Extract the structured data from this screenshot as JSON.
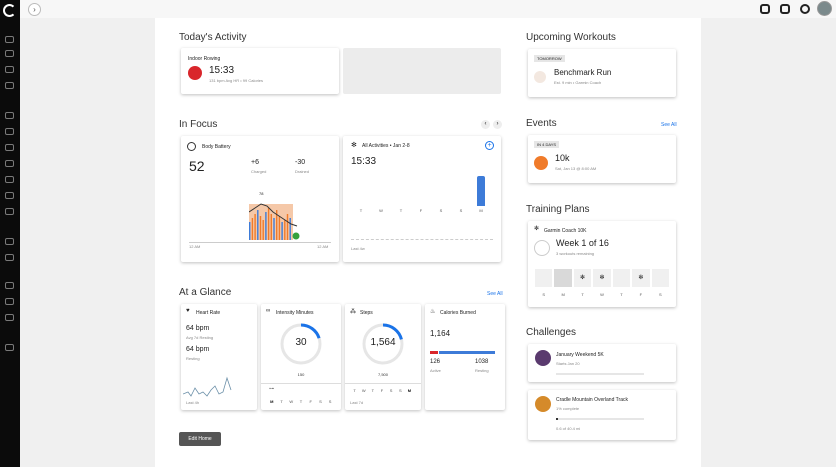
{
  "topbar": {
    "expand_icon": "›"
  },
  "sections": {
    "todays_activity": "Today's Activity",
    "in_focus": "In Focus",
    "at_a_glance": "At a Glance",
    "at_a_glance_link": "See All",
    "upcoming_workouts": "Upcoming Workouts",
    "events": "Events",
    "events_link": "See All",
    "training_plans": "Training Plans",
    "challenges": "Challenges"
  },
  "activity": {
    "name": "Indoor Rowing",
    "time": "15:33",
    "details": "131 bpm Avg HR • 99 Calories"
  },
  "body_battery": {
    "title": "Body Battery",
    "value": "52",
    "charged": "+6",
    "charged_label": "Charged",
    "drained": "-30",
    "drained_label": "Drained",
    "peak": "78",
    "x_start": "12 AM",
    "x_end": "12 AM"
  },
  "all_activities": {
    "title": "All Activities • Jan 2-8",
    "value": "15:33",
    "days": [
      "T",
      "W",
      "T",
      "F",
      "S",
      "S",
      "M"
    ],
    "footer": "Last 4w"
  },
  "heart_rate": {
    "title": "Heart Rate",
    "resting7": "64 bpm",
    "resting7_label": "Avg 7d Resting",
    "resting": "64 bpm",
    "resting_label": "Resting",
    "footer": "Last 4h"
  },
  "intensity": {
    "title": "Intensity Minutes",
    "value": "30",
    "goal": "150",
    "progress": 0.2,
    "days": [
      "M",
      "T",
      "W",
      "T",
      "F",
      "S",
      "S"
    ]
  },
  "steps": {
    "title": "Steps",
    "value": "1,564",
    "goal": "7,500",
    "progress": 0.21,
    "days": [
      "T",
      "W",
      "T",
      "F",
      "S",
      "S",
      "M"
    ],
    "footer": "Last 7d"
  },
  "calories": {
    "title": "Calories Burned",
    "value": "1,164",
    "active": "126",
    "active_label": "Active",
    "resting": "1038",
    "resting_label": "Resting"
  },
  "edit_home": "Edit Home",
  "upcoming": {
    "tag": "TOMORROW",
    "name": "Benchmark Run",
    "details": "Est. 9 min • Garmin Coach"
  },
  "event": {
    "tag": "IN 4 DAYS",
    "name": "10k",
    "date": "Sat, Jan 13 @ 8:00 AM"
  },
  "plan": {
    "coach": "Garmin Coach 10K",
    "week": "Week 1 of 16",
    "remaining": "3 workouts remaining",
    "days": [
      "S",
      "M",
      "T",
      "W",
      "T",
      "F",
      "S"
    ]
  },
  "challenges": [
    {
      "name": "January Weekend 5K",
      "sub": "Starts Jan 20",
      "progress": 0
    },
    {
      "name": "Cradle Mountain Overland Track",
      "sub": "1% complete",
      "sub2": "0.6 of 40.4 mi",
      "progress": 0.01
    }
  ],
  "colors": {
    "accent": "#1a73e8",
    "battery_orange": "#f07b2a",
    "battery_blue": "#3d7bd8",
    "red": "#d9262b",
    "green": "#36a13c"
  },
  "chart_data": [
    {
      "type": "bar",
      "categories": [
        "T",
        "W",
        "T",
        "F",
        "S",
        "S",
        "M"
      ],
      "values": [
        0,
        0,
        0,
        0,
        0,
        0,
        15.55
      ],
      "title": "All Activities • Jan 2-8"
    },
    {
      "type": "area",
      "title": "Body Battery",
      "x": [
        "12 AM",
        "12 AM"
      ],
      "peak": 78
    }
  ]
}
